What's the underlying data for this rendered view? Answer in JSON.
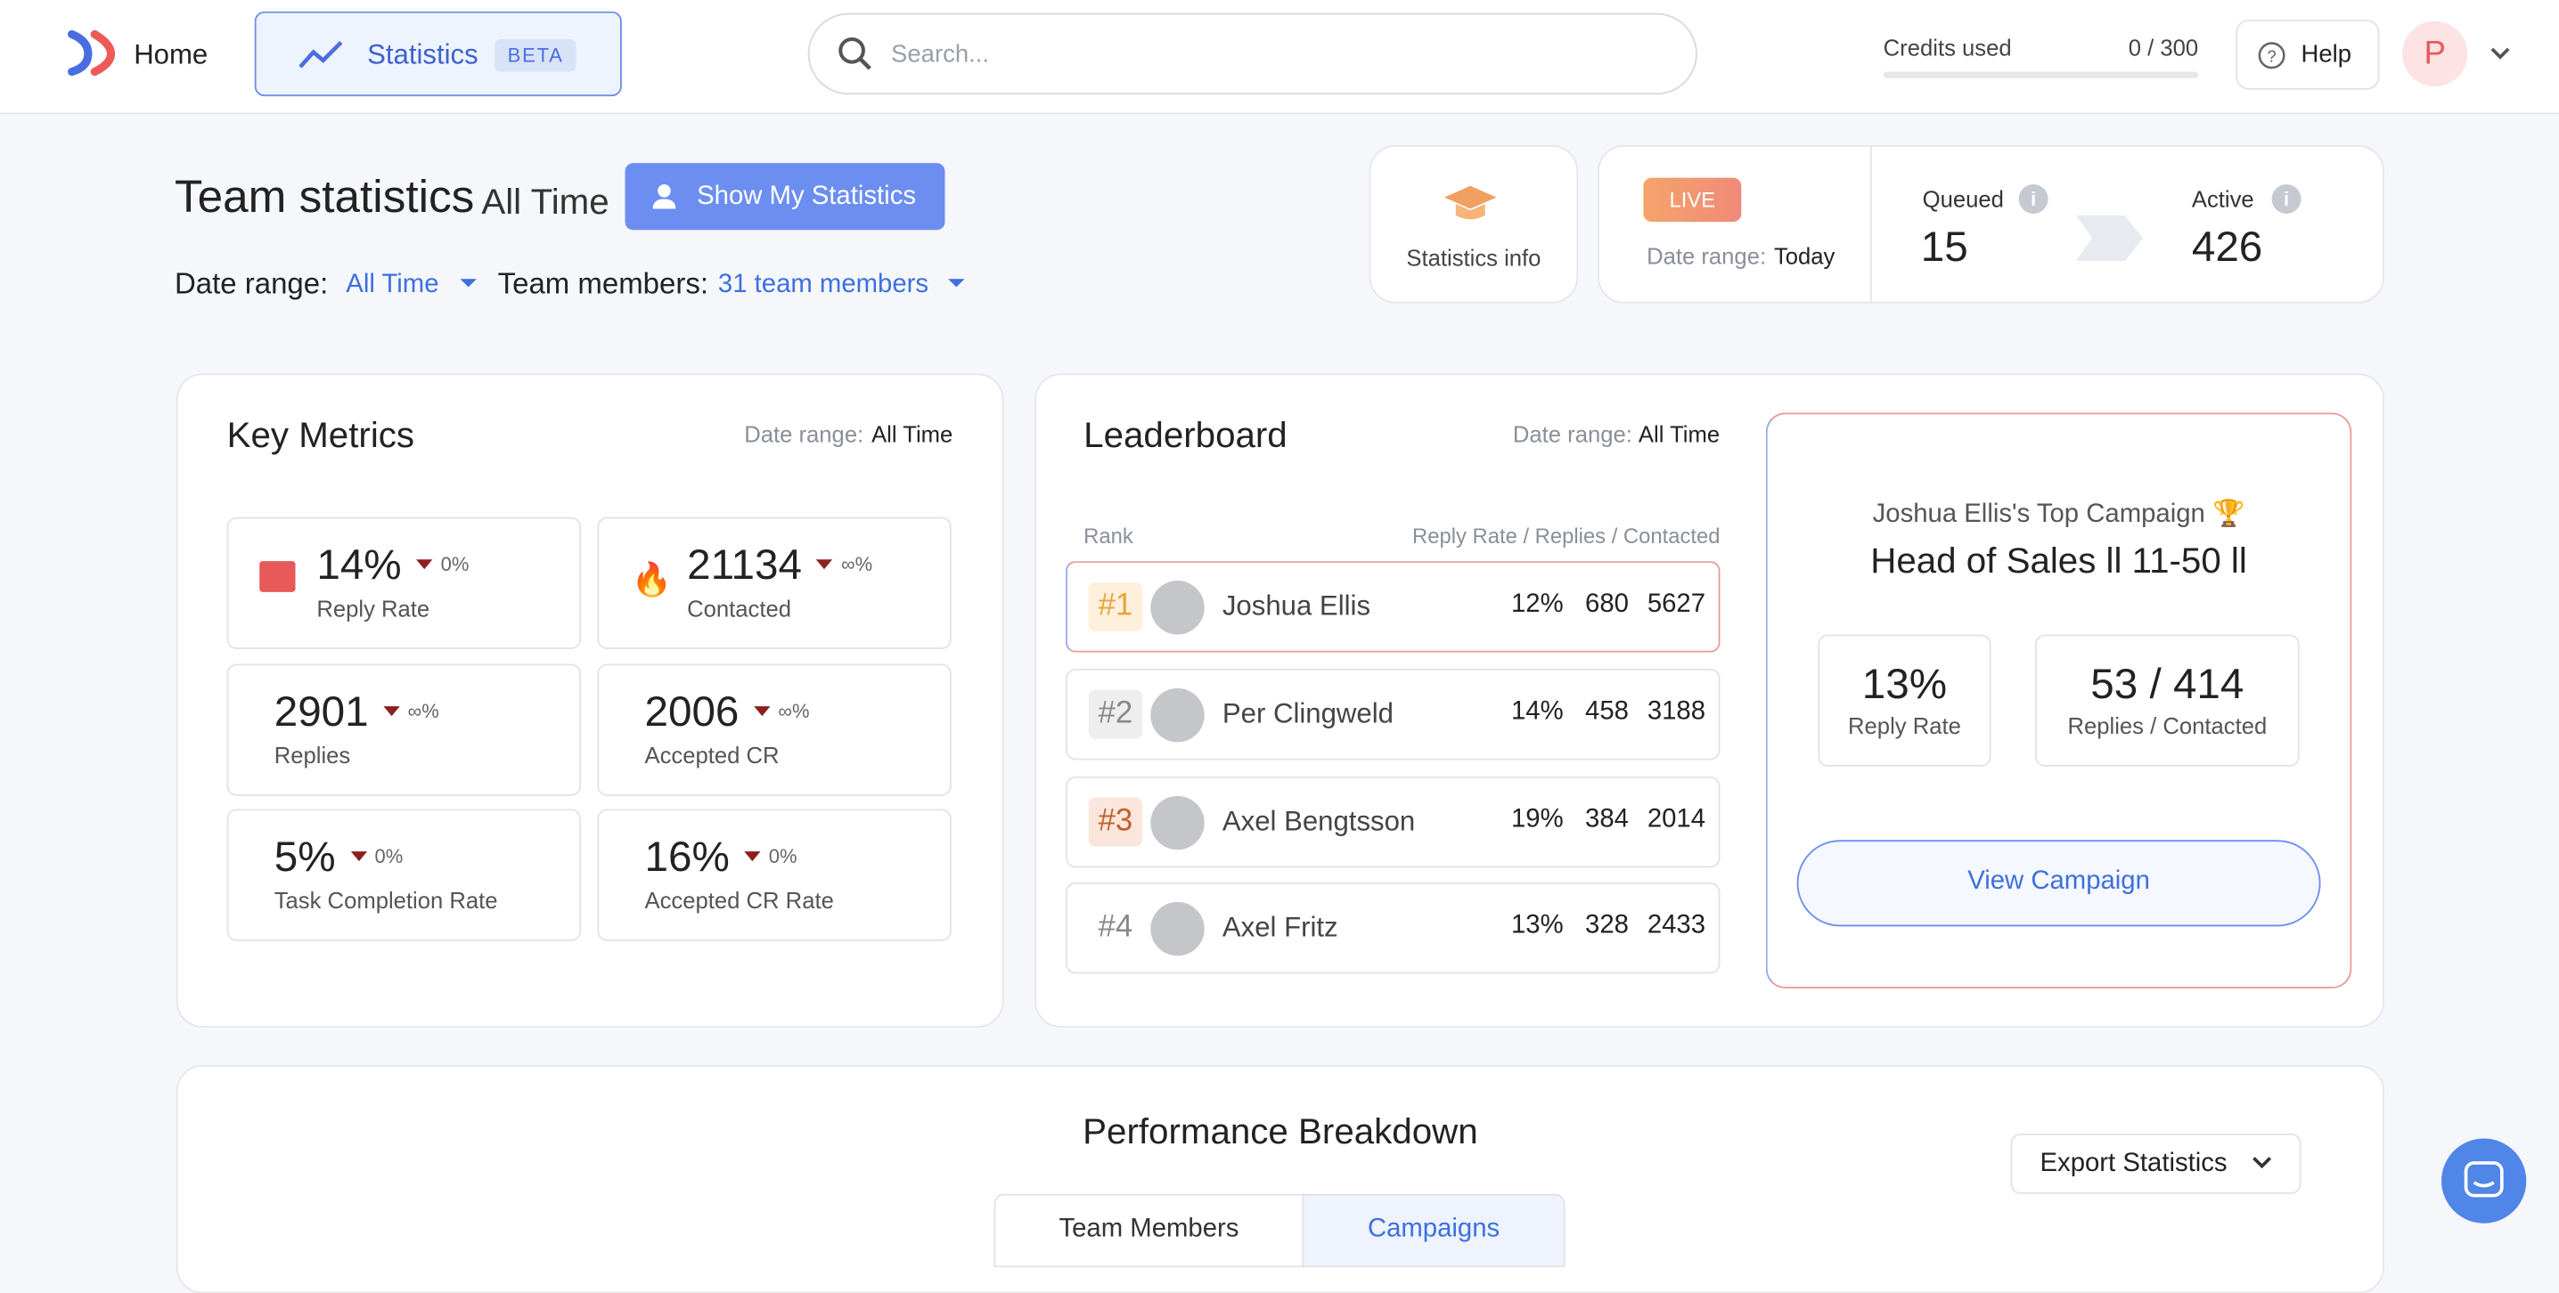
{
  "nav": {
    "home": "Home",
    "statistics": "Statistics",
    "beta": "BETA",
    "search_placeholder": "Search...",
    "credits_label": "Credits used",
    "credits_value": "0 / 300",
    "help": "Help",
    "avatar": "P"
  },
  "header": {
    "title": "Team statistics",
    "period": "All Time",
    "show_button": "Show My Statistics",
    "date_range_label": "Date range:",
    "date_range_value": "All Time",
    "team_label": "Team members:",
    "team_value": "31 team members"
  },
  "stats_info": "Statistics info",
  "live": {
    "badge": "LIVE",
    "date_label": "Date range:",
    "date_value": "Today",
    "queued_label": "Queued",
    "queued_value": "15",
    "active_label": "Active",
    "active_value": "426"
  },
  "key_metrics": {
    "title": "Key Metrics",
    "date_label": "Date range:",
    "date_value": "All Time",
    "metrics": [
      {
        "value": "14%",
        "change": "0%",
        "label": "Reply Rate"
      },
      {
        "value": "21134",
        "change": "∞%",
        "label": "Contacted"
      },
      {
        "value": "2901",
        "change": "∞%",
        "label": "Replies"
      },
      {
        "value": "2006",
        "change": "∞%",
        "label": "Accepted CR"
      },
      {
        "value": "5%",
        "change": "0%",
        "label": "Task Completion Rate"
      },
      {
        "value": "16%",
        "change": "0%",
        "label": "Accepted CR Rate"
      }
    ]
  },
  "leaderboard": {
    "title": "Leaderboard",
    "date_label": "Date range:",
    "date_value": "All Time",
    "rank_header": "Rank",
    "cols_header": "Reply Rate / Replies / Contacted",
    "rows": [
      {
        "rank": "#1",
        "name": "Joshua Ellis",
        "reply_rate": "12%",
        "replies": "680",
        "contacted": "5627"
      },
      {
        "rank": "#2",
        "name": "Per Clingweld",
        "reply_rate": "14%",
        "replies": "458",
        "contacted": "3188"
      },
      {
        "rank": "#3",
        "name": "Axel Bengtsson",
        "reply_rate": "19%",
        "replies": "384",
        "contacted": "2014"
      },
      {
        "rank": "#4",
        "name": "Axel Fritz",
        "reply_rate": "13%",
        "replies": "328",
        "contacted": "2433"
      }
    ]
  },
  "top_campaign": {
    "title": "Joshua Ellis's Top Campaign",
    "name": "Head of Sales ll 11-50 ll",
    "reply_rate": "13%",
    "reply_rate_label": "Reply Rate",
    "ratio": "53 / 414",
    "ratio_label": "Replies / Contacted",
    "button": "View Campaign"
  },
  "performance": {
    "title": "Performance Breakdown",
    "export": "Export Statistics",
    "tabs": [
      "Team Members",
      "Campaigns"
    ]
  }
}
